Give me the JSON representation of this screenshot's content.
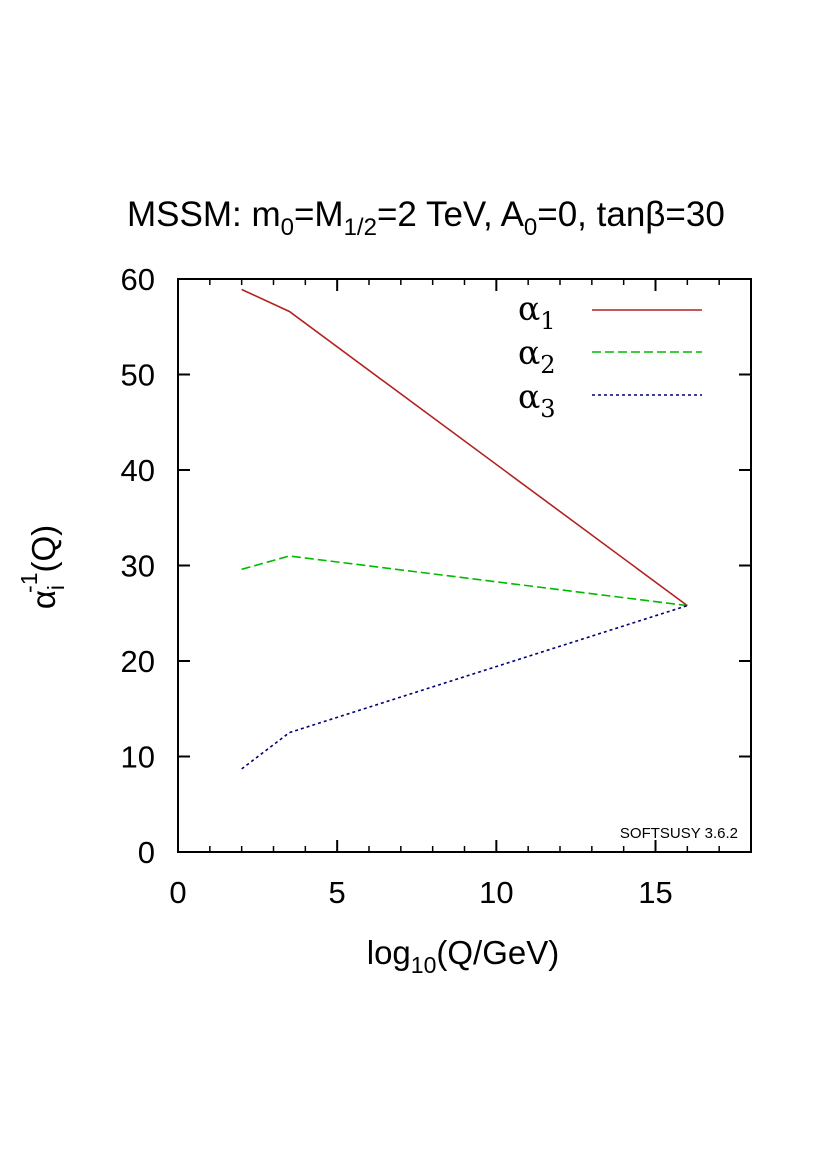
{
  "chart_data": {
    "type": "line",
    "title": {
      "prefix": "MSSM: m",
      "m_sub": "0",
      "mid": "=M",
      "M_sub": "1/2",
      "after_M": "=2 TeV, A",
      "A_sub": "0",
      "suffix": "=0, tanβ=30"
    },
    "xlabel": {
      "main": "log",
      "sub": "10",
      "rest": "(Q/GeV)"
    },
    "ylabel": {
      "main": "α",
      "sub": "i",
      "sup": "-1",
      "rest": "(Q)"
    },
    "xlim": [
      0,
      18
    ],
    "ylim": [
      0,
      60
    ],
    "xticks": [
      0,
      5,
      10,
      15
    ],
    "yticks": [
      0,
      10,
      20,
      30,
      40,
      50,
      60
    ],
    "annotation": "SOFTSUSY 3.6.2",
    "legend_position": "top-right",
    "series": [
      {
        "name": "α",
        "sub": "1",
        "color": "#b22222",
        "dash": "solid",
        "x": [
          2.0,
          3.5,
          16.0
        ],
        "y": [
          58.9,
          56.6,
          25.8
        ]
      },
      {
        "name": "α",
        "sub": "2",
        "color": "#00bb00",
        "dash": "dashed",
        "x": [
          2.0,
          3.5,
          16.0
        ],
        "y": [
          29.6,
          31.0,
          25.8
        ]
      },
      {
        "name": "α",
        "sub": "3",
        "color": "#00007a",
        "dash": "dotted",
        "x": [
          2.0,
          3.5,
          16.0
        ],
        "y": [
          8.7,
          12.5,
          25.8
        ]
      }
    ]
  }
}
